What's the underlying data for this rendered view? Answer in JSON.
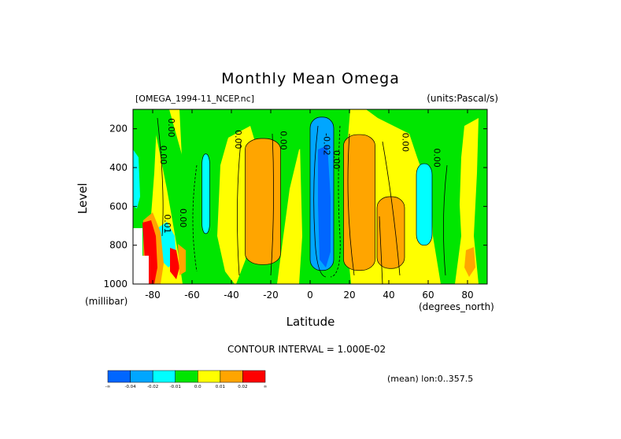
{
  "chart_data": {
    "type": "heatmap",
    "title": "Monthly Mean Omega",
    "source_label": "[OMEGA_1994-11_NCEP.nc]",
    "units_label": "(units:Pascal/s)",
    "xlabel": "Latitude",
    "xunits": "(degrees_north)",
    "ylabel": "Level",
    "yunits": "(millibar)",
    "xlim": [
      -90,
      90
    ],
    "ylim": [
      1000,
      100
    ],
    "x_ticks": [
      "-80",
      "-60",
      "-40",
      "-20",
      "0",
      "20",
      "40",
      "60",
      "80"
    ],
    "y_ticks": [
      "200",
      "400",
      "600",
      "800",
      "1000"
    ],
    "contour_interval_label": "CONTOUR INTERVAL = 1.000E-02",
    "mean_label": "(mean) lon:0..357.5",
    "contour_labels": [
      "0.00",
      "0.00",
      "0.01",
      "0.00",
      "0.00",
      "-0.02",
      "0.00",
      "0.00",
      "0.00",
      "0.00"
    ],
    "legend": {
      "colors": [
        "#0066ff",
        "#00a6ff",
        "#00ffff",
        "#00e600",
        "#ffff00",
        "#ffa500",
        "#ff0000"
      ],
      "labels": [
        "-∞",
        "-0.04",
        "-0.02",
        "-0.01",
        "0.0",
        "0.01",
        "0.02",
        "∞"
      ]
    },
    "regions": [
      {
        "name": "band-minus50",
        "color": "#00ffff",
        "lat": [
          -55,
          -51
        ],
        "p": [
          330,
          740
        ]
      },
      {
        "name": "band-minus25",
        "color": "#ffa500",
        "lat": [
          -33,
          -15
        ],
        "p": [
          250,
          900
        ]
      },
      {
        "name": "band-5",
        "color": "#00a6ff",
        "lat": [
          0,
          12
        ],
        "p": [
          140,
          930
        ]
      },
      {
        "name": "band-25",
        "color": "#ffa500",
        "lat": [
          17,
          33
        ],
        "p": [
          230,
          930
        ]
      },
      {
        "name": "band-40",
        "color": "#ffa500",
        "lat": [
          34,
          48
        ],
        "p": [
          550,
          920
        ]
      },
      {
        "name": "band-60",
        "color": "#00ffff",
        "lat": [
          54,
          62
        ],
        "p": [
          380,
          800
        ]
      }
    ]
  }
}
